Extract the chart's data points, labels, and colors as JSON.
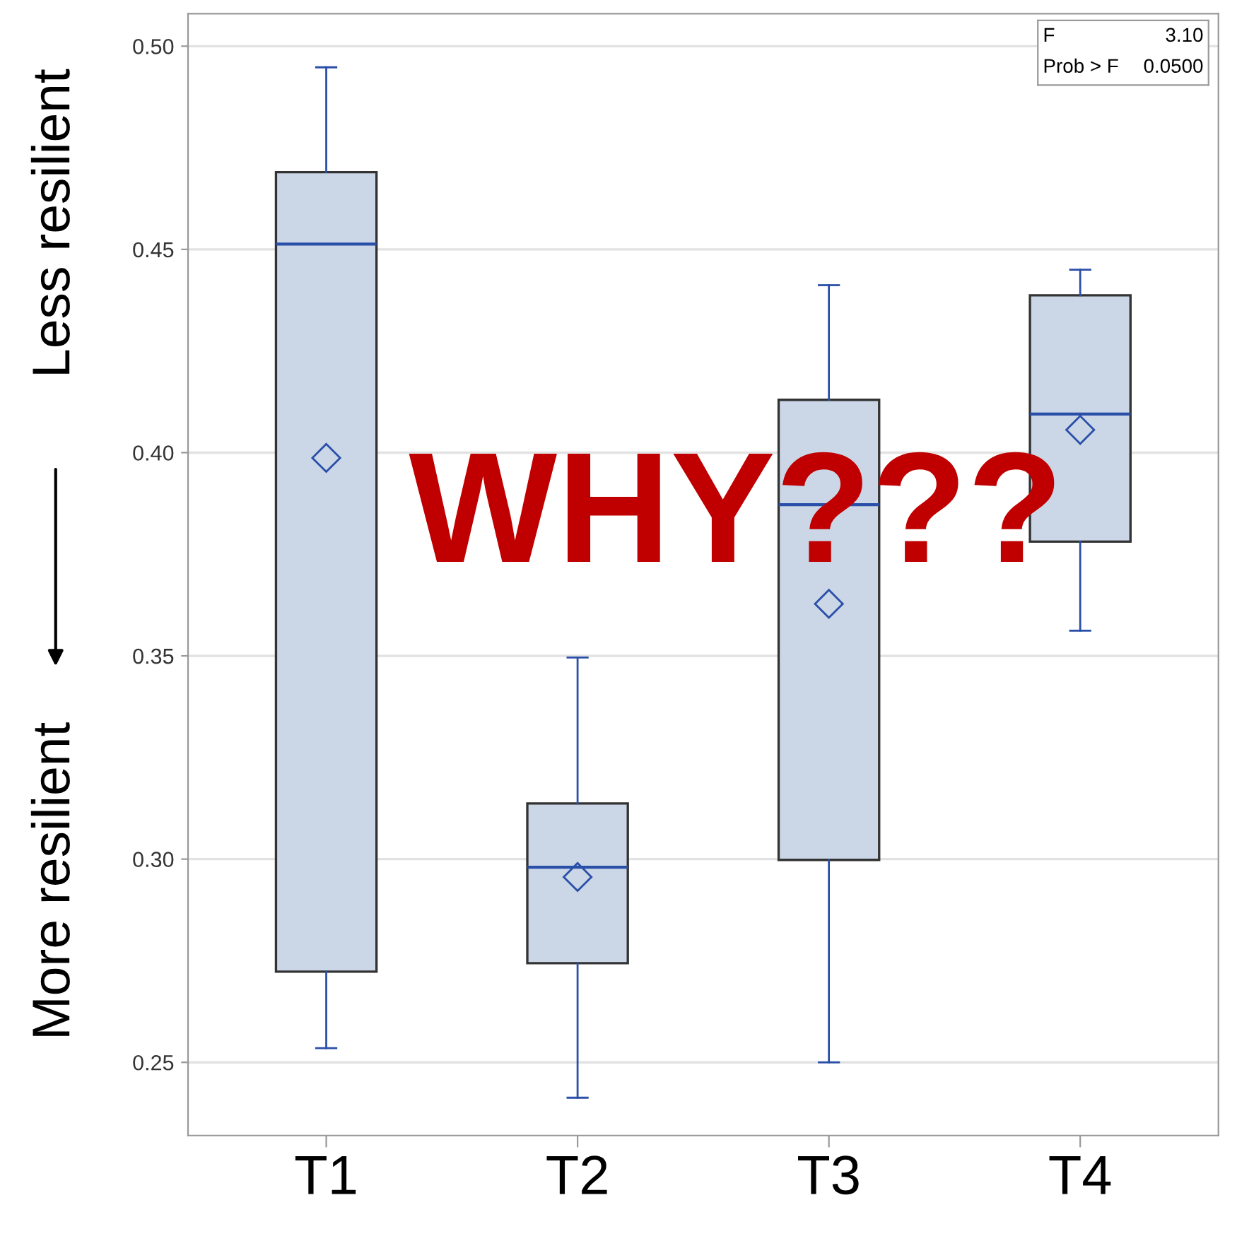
{
  "chart_data": {
    "type": "box",
    "categories": [
      "T1",
      "T2",
      "T3",
      "T4"
    ],
    "boxes": [
      {
        "low": 0.2535,
        "q1": 0.2723,
        "median": 0.4513,
        "q3": 0.469,
        "high": 0.4948,
        "mean": 0.3987
      },
      {
        "low": 0.2413,
        "q1": 0.2744,
        "median": 0.298,
        "q3": 0.3137,
        "high": 0.3496,
        "mean": 0.2956
      },
      {
        "low": 0.25,
        "q1": 0.2998,
        "median": 0.3872,
        "q3": 0.413,
        "high": 0.4412,
        "mean": 0.3628
      },
      {
        "low": 0.3562,
        "q1": 0.3781,
        "median": 0.4095,
        "q3": 0.4387,
        "high": 0.445,
        "mean": 0.4056
      }
    ],
    "color": "#cbd6e6",
    "ylim": [
      0.232,
      0.508
    ],
    "yticks": [
      {
        "value": 0.25,
        "label": "0.25"
      },
      {
        "value": 0.3,
        "label": "0.30"
      },
      {
        "value": 0.35,
        "label": "0.35"
      },
      {
        "value": 0.4,
        "label": "0.40"
      },
      {
        "value": 0.45,
        "label": "0.45"
      },
      {
        "value": 0.5,
        "label": "0.50"
      }
    ],
    "grid": "y",
    "marker": "diamond",
    "annotations": [
      "Less resilient",
      "More resilient",
      "WHY???",
      "F",
      "3.10",
      "Prob > F",
      "0.0500"
    ]
  }
}
